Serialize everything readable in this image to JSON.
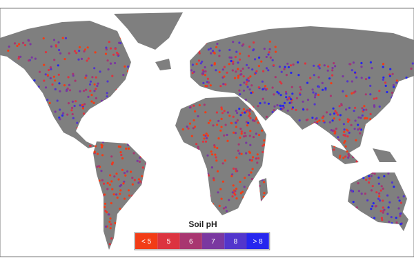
{
  "legend": {
    "title": "Soil pH",
    "items": [
      {
        "label": "< 5",
        "color": "#f23c16"
      },
      {
        "label": "5",
        "color": "#dc3440"
      },
      {
        "label": "6",
        "color": "#a83670"
      },
      {
        "label": "7",
        "color": "#7a38a0"
      },
      {
        "label": "8",
        "color": "#5236cc"
      },
      {
        "label": "> 8",
        "color": "#2626ee"
      }
    ]
  }
}
